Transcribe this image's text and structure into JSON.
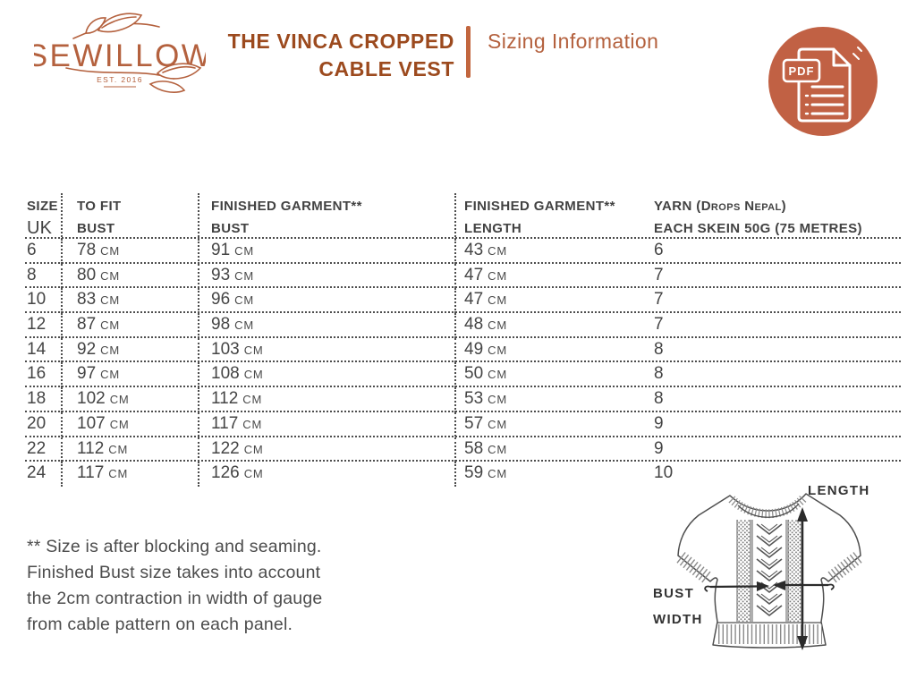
{
  "brand": {
    "name": "SEWILLOW",
    "established": "EST. 2016"
  },
  "header": {
    "title_line1": "THE VINCA CROPPED",
    "title_line2": "CABLE VEST",
    "subtitle": "Sizing Information",
    "pdf_badge": "PDF"
  },
  "colors": {
    "terracotta": "#b4613e",
    "title_brown": "#9c4a1e",
    "pdf_circle": "#c16144",
    "table_ink": "#424242",
    "dotted_line": "#4d4d4d"
  },
  "table": {
    "unit": "cm",
    "columns": [
      {
        "line1": "SIZE",
        "line2": "UK"
      },
      {
        "line1": "TO FIT",
        "line2": "BUST"
      },
      {
        "line1": "FINISHED GARMENT**",
        "line2": "BUST"
      },
      {
        "line1": "FINISHED GARMENT**",
        "line2": "LENGTH"
      },
      {
        "line1": "YARN (Drops Nepal)",
        "line2": "EACH SKEIN 50G (75 METRES)"
      }
    ],
    "rows": [
      {
        "size": "6",
        "to_fit_bust": "78",
        "finished_bust": "91",
        "finished_length": "43",
        "skeins": "6"
      },
      {
        "size": "8",
        "to_fit_bust": "80",
        "finished_bust": "93",
        "finished_length": "47",
        "skeins": "7"
      },
      {
        "size": "10",
        "to_fit_bust": "83",
        "finished_bust": "96",
        "finished_length": "47",
        "skeins": "7"
      },
      {
        "size": "12",
        "to_fit_bust": "87",
        "finished_bust": "98",
        "finished_length": "48",
        "skeins": "7"
      },
      {
        "size": "14",
        "to_fit_bust": "92",
        "finished_bust": "103",
        "finished_length": "49",
        "skeins": "8"
      },
      {
        "size": "16",
        "to_fit_bust": "97",
        "finished_bust": "108",
        "finished_length": "50",
        "skeins": "8"
      },
      {
        "size": "18",
        "to_fit_bust": "102",
        "finished_bust": "112",
        "finished_length": "53",
        "skeins": "8"
      },
      {
        "size": "20",
        "to_fit_bust": "107",
        "finished_bust": "117",
        "finished_length": "57",
        "skeins": "9"
      },
      {
        "size": "22",
        "to_fit_bust": "112",
        "finished_bust": "122",
        "finished_length": "58",
        "skeins": "9"
      },
      {
        "size": "24",
        "to_fit_bust": "117",
        "finished_bust": "126",
        "finished_length": "59",
        "skeins": "10"
      }
    ]
  },
  "footnote": {
    "line1": "** Size is after blocking and seaming.",
    "line2": "Finished Bust size takes into account",
    "line3": "the 2cm contraction in width of gauge",
    "line4": "from cable pattern on each panel."
  },
  "diagram": {
    "length_label": "LENGTH",
    "bust_label_line1": "BUST",
    "bust_label_line2": "WIDTH"
  }
}
